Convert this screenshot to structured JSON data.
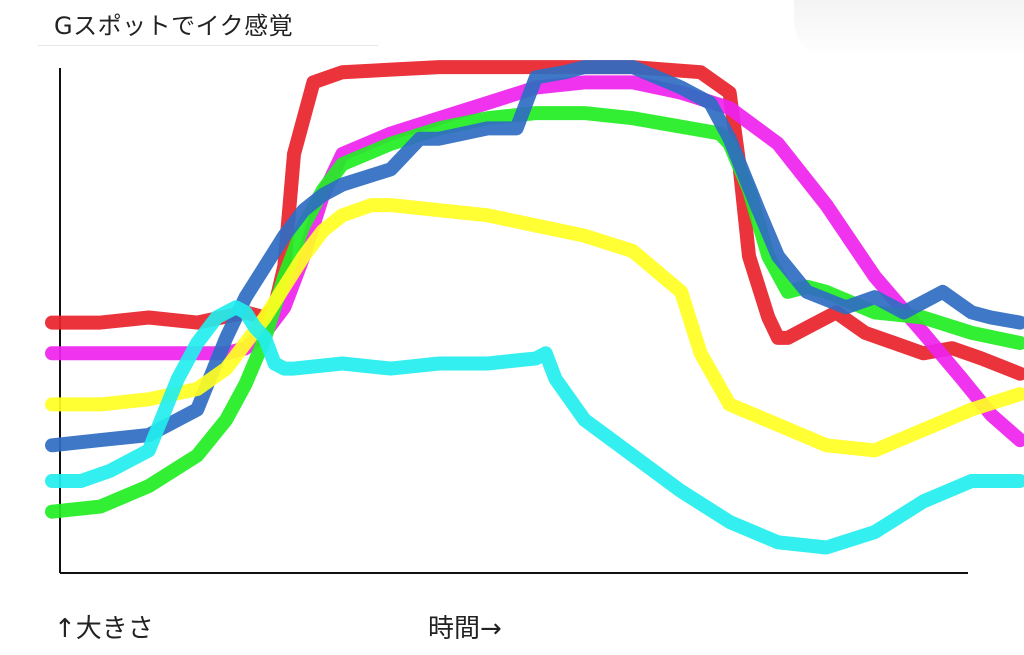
{
  "chart_data": {
    "type": "line",
    "title": "Gスポットでイク感覚",
    "xlabel": "時間→",
    "ylabel": "↑大きさ",
    "xlim": [
      0,
      100
    ],
    "ylim": [
      0,
      100
    ],
    "grid": false,
    "legend": "none",
    "series": [
      {
        "color": "#e8222a",
        "x": [
          0,
          5,
          10,
          15,
          20,
          22,
          23,
          24,
          25,
          27,
          30,
          40,
          50,
          55,
          60,
          67,
          70,
          71,
          72,
          74,
          75,
          76,
          78,
          81,
          84,
          87,
          90,
          93,
          96,
          100
        ],
        "y": [
          49,
          49,
          50,
          49,
          51,
          50,
          52,
          60,
          82,
          96,
          98,
          99,
          99,
          99,
          99,
          98,
          94,
          80,
          62,
          50,
          46,
          46,
          48,
          51,
          47,
          45,
          43,
          44,
          42,
          39
        ]
      },
      {
        "color": "#ee22ee",
        "x": [
          0,
          5,
          10,
          15,
          18,
          20,
          22,
          24,
          26,
          28,
          30,
          35,
          40,
          45,
          50,
          55,
          60,
          65,
          70,
          75,
          80,
          85,
          90,
          94,
          97,
          100
        ],
        "y": [
          43,
          43,
          43,
          43,
          43,
          44,
          47,
          52,
          62,
          74,
          82,
          86,
          89,
          92,
          95,
          96,
          96,
          94,
          91,
          84,
          72,
          58,
          47,
          38,
          31,
          26
        ]
      },
      {
        "color": "#22ee22",
        "x": [
          0,
          5,
          10,
          15,
          18,
          20,
          22,
          24,
          26,
          28,
          30,
          35,
          40,
          45,
          50,
          55,
          60,
          63,
          66,
          69,
          70,
          72,
          74,
          76,
          78,
          80,
          85,
          90,
          95,
          100
        ],
        "y": [
          12,
          13,
          17,
          23,
          30,
          37,
          46,
          58,
          68,
          75,
          80,
          84,
          87,
          89,
          90,
          90,
          89,
          88,
          87,
          86,
          84,
          75,
          62,
          55,
          56,
          55,
          51,
          50,
          47,
          45
        ]
      },
      {
        "color": "#2f6cc2",
        "x": [
          0,
          5,
          10,
          15,
          18,
          20,
          22,
          24,
          26,
          28,
          30,
          35,
          38,
          40,
          45,
          48,
          50,
          53,
          55,
          60,
          65,
          68,
          70,
          73,
          75,
          78,
          82,
          85,
          88,
          90,
          92,
          95,
          97,
          100
        ],
        "y": [
          25,
          26,
          27,
          32,
          46,
          54,
          60,
          66,
          71,
          74,
          76,
          79,
          85,
          85,
          87,
          87,
          97,
          98,
          99,
          99,
          95,
          92,
          85,
          71,
          62,
          55,
          52,
          54,
          51,
          53,
          55,
          51,
          50,
          49
        ]
      },
      {
        "color": "#ffff22",
        "x": [
          0,
          5,
          10,
          15,
          18,
          20,
          22,
          24,
          26,
          28,
          30,
          33,
          35,
          40,
          45,
          50,
          55,
          60,
          65,
          67,
          70,
          75,
          80,
          85,
          90,
          95,
          100
        ],
        "y": [
          33,
          33,
          34,
          36,
          40,
          45,
          50,
          56,
          62,
          67,
          70,
          72,
          72,
          71,
          70,
          68,
          66,
          63,
          55,
          43,
          33,
          29,
          25,
          24,
          28,
          32,
          35
        ]
      },
      {
        "color": "#22eeee",
        "x": [
          0,
          3,
          6,
          10,
          13,
          15,
          17,
          19,
          20,
          21,
          22,
          23,
          24,
          25,
          30,
          35,
          40,
          45,
          50,
          51,
          52,
          55,
          60,
          65,
          70,
          75,
          80,
          85,
          90,
          95,
          100
        ],
        "y": [
          18,
          18,
          20,
          24,
          38,
          45,
          50,
          52,
          51,
          48,
          46,
          41,
          40,
          40,
          41,
          40,
          41,
          41,
          42,
          43,
          38,
          30,
          23,
          16,
          10,
          6,
          5,
          8,
          14,
          18,
          18
        ]
      }
    ]
  }
}
